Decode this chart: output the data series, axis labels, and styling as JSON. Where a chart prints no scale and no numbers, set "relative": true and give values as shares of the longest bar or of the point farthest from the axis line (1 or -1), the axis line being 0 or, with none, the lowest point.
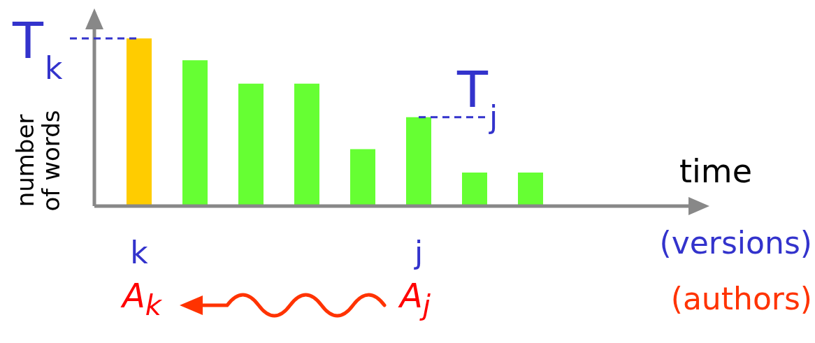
{
  "chart_data": {
    "type": "bar",
    "relative": true,
    "xlabel": "time",
    "ylabel": "number of words",
    "categories": [
      "k",
      null,
      null,
      null,
      null,
      "j",
      null,
      null
    ],
    "values": [
      1,
      0.87,
      0.73,
      0.73,
      0.34,
      0.53,
      0.2,
      0.2
    ],
    "colors": [
      "#ffcc00",
      "#66ff33",
      "#66ff33",
      "#66ff33",
      "#66ff33",
      "#66ff33",
      "#66ff33",
      "#66ff33"
    ],
    "annotations": [
      {
        "text": "T$_{k}$",
        "x": "k",
        "y": 1
      },
      {
        "text": "T$_{j}$",
        "x": "j",
        "y": 0.53
      },
      "A$_{k}$",
      "A$_{j}$",
      "(versions)",
      "(authors)"
    ],
    "legend": false,
    "grid": false
  }
}
